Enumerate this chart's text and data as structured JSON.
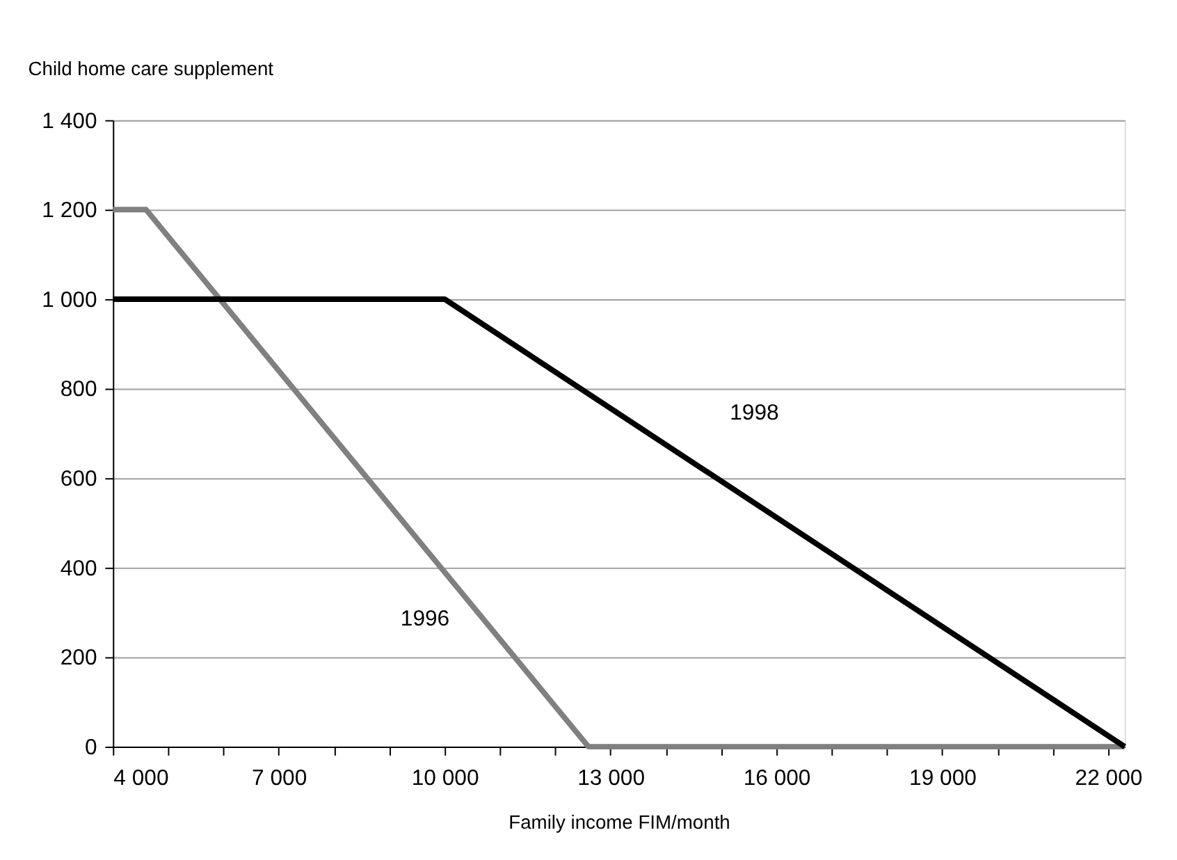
{
  "chart_data": {
    "type": "line",
    "ylabel": "Child home care supplement",
    "xlabel": "Family income FIM/month",
    "series": [
      {
        "name": "1996",
        "color": "#808080",
        "x": [
          4000,
          4600,
          12600,
          22300
        ],
        "values": [
          1200,
          1200,
          0,
          0
        ]
      },
      {
        "name": "1998",
        "color": "#000000",
        "x": [
          4000,
          10000,
          22300
        ],
        "values": [
          1000,
          1000,
          0
        ]
      }
    ],
    "xlim": [
      4000,
      22300
    ],
    "xticks": [
      {
        "value": 4000,
        "label": "4 000"
      },
      {
        "value": 5000,
        "label": null
      },
      {
        "value": 6000,
        "label": null
      },
      {
        "value": 7000,
        "label": "7 000"
      },
      {
        "value": 8000,
        "label": null
      },
      {
        "value": 9000,
        "label": null
      },
      {
        "value": 10000,
        "label": "10 000"
      },
      {
        "value": 11000,
        "label": null
      },
      {
        "value": 12000,
        "label": null
      },
      {
        "value": 13000,
        "label": "13 000"
      },
      {
        "value": 14000,
        "label": null
      },
      {
        "value": 15000,
        "label": null
      },
      {
        "value": 16000,
        "label": "16 000"
      },
      {
        "value": 17000,
        "label": null
      },
      {
        "value": 18000,
        "label": null
      },
      {
        "value": 19000,
        "label": "19 000"
      },
      {
        "value": 20000,
        "label": null
      },
      {
        "value": 21000,
        "label": null
      },
      {
        "value": 22000,
        "label": "22 000"
      }
    ],
    "ylim": [
      0,
      1400
    ],
    "yticks": [
      0,
      200,
      400,
      600,
      800,
      {
        "value": 1000,
        "label": "1 000"
      },
      {
        "value": 1200,
        "label": "1 200"
      },
      {
        "value": 1400,
        "label": "1 400"
      }
    ],
    "grid": "y",
    "marker": "none",
    "line_style": "solid"
  }
}
